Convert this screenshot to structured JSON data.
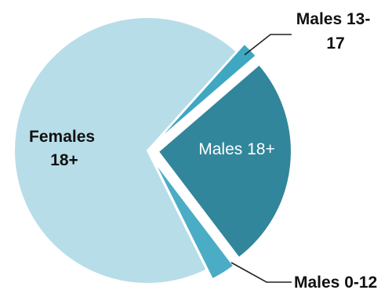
{
  "chart_data": {
    "type": "pie",
    "slices": [
      {
        "label": "Males 13-",
        "label_line2": "17",
        "value": 2,
        "color": "#3fa7c1",
        "explode": true
      },
      {
        "label": "Males 18+",
        "label_line2": "",
        "value": 26,
        "color": "#31869b",
        "explode": true
      },
      {
        "label": "Males 0-12",
        "label_line2": "",
        "value": 3,
        "color": "#4bacc6",
        "explode": true
      },
      {
        "label": "Females",
        "label_line2": "18+",
        "value": 69,
        "color": "#b7dde8",
        "explode": false
      }
    ],
    "legend": "none"
  }
}
